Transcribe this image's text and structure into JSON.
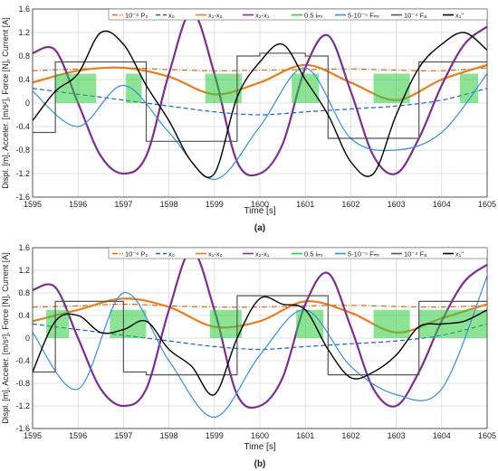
{
  "chart_data": [
    {
      "panel_label": "(a)",
      "type": "line",
      "xlabel": "Time [s]",
      "ylabel": "Displ. [m], Acceler. [m/s²], Force [N], Current [A]",
      "xlim": [
        1595,
        1605
      ],
      "ylim": [
        -1.6,
        1.6
      ],
      "x_ticks": [
        1595,
        1596,
        1597,
        1598,
        1599,
        1600,
        1601,
        1602,
        1603,
        1604,
        1605
      ],
      "y_ticks": [
        -1.6,
        -1.2,
        -0.8,
        -0.4,
        0,
        0.4,
        0.8,
        1.2,
        1.6
      ],
      "grid": true,
      "legend_position": "top",
      "legend": [
        {
          "label": "10⁻⁶ P₀",
          "color": "#d2691e",
          "dash": "6,2,1,2"
        },
        {
          "label": "x₀",
          "color": "#1f5fbf",
          "dash": "5,3"
        },
        {
          "label": "x₁-x₀",
          "color": "#e67e22",
          "dash": ""
        },
        {
          "label": "x₂-x₁",
          "color": "#7b2f8e",
          "dash": ""
        },
        {
          "label": "0.5 iₘᵣ",
          "color": "#2ecc40",
          "dash": ""
        },
        {
          "label": "5·10⁻⁵ Fₘᵣ",
          "color": "#3a8fd8",
          "dash": ""
        },
        {
          "label": "10⁻⁴ Fₐ",
          "color": "#555555",
          "dash": ""
        },
        {
          "label": "x₁''",
          "color": "#000000",
          "dash": ""
        }
      ],
      "series": [
        {
          "key": "p0",
          "x": [
            1595,
            1596,
            1597,
            1598,
            1599,
            1600,
            1601,
            1602,
            1603,
            1604,
            1605
          ],
          "y": [
            0.55,
            0.58,
            0.6,
            0.57,
            0.55,
            0.56,
            0.57,
            0.58,
            0.56,
            0.55,
            0.6
          ]
        },
        {
          "key": "x0",
          "x": [
            1595,
            1596,
            1597,
            1598,
            1599,
            1600,
            1601,
            1602,
            1603,
            1604,
            1605
          ],
          "y": [
            0.25,
            0.15,
            0.05,
            -0.05,
            -0.15,
            -0.2,
            -0.15,
            -0.1,
            -0.05,
            0.05,
            0.25
          ]
        },
        {
          "key": "x1x0",
          "x": [
            1595,
            1596,
            1597,
            1598,
            1599,
            1600,
            1601,
            1602,
            1603,
            1604,
            1605
          ],
          "y": [
            0.35,
            0.55,
            0.6,
            0.45,
            0.15,
            0.35,
            0.65,
            0.35,
            0.05,
            0.4,
            0.65
          ]
        },
        {
          "key": "x2x1",
          "x": [
            1595,
            1595.5,
            1596,
            1596.5,
            1597,
            1597.5,
            1598,
            1598.5,
            1599,
            1599.5,
            1600,
            1600.5,
            1601,
            1601.5,
            1602,
            1602.5,
            1603,
            1603.5,
            1604,
            1604.5,
            1605
          ],
          "y": [
            0.85,
            0.9,
            0.0,
            -0.9,
            -1.2,
            -0.9,
            0.5,
            1.55,
            0.5,
            -1.0,
            -1.2,
            -0.7,
            0.6,
            1.15,
            0.2,
            -0.9,
            -1.2,
            -0.6,
            0.3,
            1.0,
            1.3
          ]
        },
        {
          "key": "imr",
          "bands": [
            [
              1595.5,
              1596.4
            ],
            [
              1597.05,
              1597.4
            ],
            [
              1598.8,
              1599.6
            ],
            [
              1600.7,
              1601.3
            ],
            [
              1602.5,
              1603.3
            ],
            [
              1604.4,
              1604.8
            ]
          ],
          "y": [
            0,
            0.5
          ]
        },
        {
          "key": "fmr",
          "x": [
            1595,
            1596,
            1597,
            1598,
            1599,
            1600,
            1601,
            1602,
            1603,
            1604,
            1605
          ],
          "y": [
            0.2,
            -0.4,
            0.3,
            -0.5,
            -1.3,
            -0.4,
            0.6,
            -0.6,
            -0.8,
            -0.5,
            0.5
          ]
        },
        {
          "key": "fa",
          "x": [
            1595,
            1595.5,
            1596,
            1596.5,
            1597,
            1597.5,
            1598,
            1598.5,
            1599,
            1599.5,
            1600,
            1600.5,
            1601,
            1601.5,
            1602,
            1602.5,
            1603,
            1603.5,
            1604,
            1604.5,
            1605
          ],
          "y": [
            -0.5,
            0.7,
            0.7,
            0.7,
            0.7,
            -0.65,
            -0.65,
            -0.65,
            -0.65,
            0.8,
            0.85,
            0.85,
            0.8,
            -0.6,
            -0.6,
            -0.6,
            -0.6,
            0.7,
            0.7,
            0.7,
            0.7
          ]
        },
        {
          "key": "acc",
          "x": [
            1595,
            1595.5,
            1596,
            1596.5,
            1597,
            1597.5,
            1598,
            1598.5,
            1599,
            1599.5,
            1600,
            1600.5,
            1601,
            1601.5,
            1602,
            1602.5,
            1603,
            1603.5,
            1604,
            1604.5,
            1605
          ],
          "y": [
            -0.3,
            0.2,
            0.5,
            1.2,
            1.0,
            0.3,
            -0.3,
            -1.0,
            -1.2,
            0.1,
            0.7,
            1.0,
            0.4,
            -0.2,
            -1.0,
            -1.2,
            -0.2,
            0.6,
            1.0,
            1.2,
            0.9
          ]
        }
      ]
    },
    {
      "panel_label": "(b)",
      "type": "line",
      "xlabel": "Time [s]",
      "ylabel": "Displ. [m], Acceler. [m/s²], Force [N], Current [A]",
      "xlim": [
        1595,
        1605
      ],
      "ylim": [
        -1.6,
        1.6
      ],
      "x_ticks": [
        1595,
        1596,
        1597,
        1598,
        1599,
        1600,
        1601,
        1602,
        1603,
        1604,
        1605
      ],
      "y_ticks": [
        -1.6,
        -1.2,
        -0.8,
        -0.4,
        0,
        0.4,
        0.8,
        1.2,
        1.6
      ],
      "grid": true,
      "legend_position": "top",
      "legend": [
        {
          "label": "10⁻⁶ P₀",
          "color": "#d2691e",
          "dash": "6,2,1,2"
        },
        {
          "label": "x₀",
          "color": "#1f5fbf",
          "dash": "5,3"
        },
        {
          "label": "x₁-x₀",
          "color": "#e67e22",
          "dash": ""
        },
        {
          "label": "x₂-x₁",
          "color": "#7b2f8e",
          "dash": ""
        },
        {
          "label": "0.5 iₘᵣ",
          "color": "#2ecc40",
          "dash": ""
        },
        {
          "label": "5·10⁻⁵ Fₘᵣ",
          "color": "#3a8fd8",
          "dash": ""
        },
        {
          "label": "10⁻⁴ Fₐ",
          "color": "#555555",
          "dash": ""
        },
        {
          "label": "x₁''",
          "color": "#000000",
          "dash": ""
        }
      ],
      "series": [
        {
          "key": "p0",
          "x": [
            1595,
            1596,
            1597,
            1598,
            1599,
            1600,
            1601,
            1602,
            1603,
            1604,
            1605
          ],
          "y": [
            0.55,
            0.57,
            0.6,
            0.57,
            0.55,
            0.55,
            0.57,
            0.58,
            0.56,
            0.55,
            0.58
          ]
        },
        {
          "key": "x0",
          "x": [
            1595,
            1596,
            1597,
            1598,
            1599,
            1600,
            1601,
            1602,
            1603,
            1604,
            1605
          ],
          "y": [
            0.25,
            0.15,
            0.05,
            -0.05,
            -0.15,
            -0.2,
            -0.15,
            -0.1,
            -0.05,
            0.05,
            0.25
          ]
        },
        {
          "key": "x1x0",
          "x": [
            1595,
            1596,
            1597,
            1598,
            1599,
            1600,
            1601,
            1602,
            1603,
            1604,
            1605
          ],
          "y": [
            0.3,
            0.5,
            0.7,
            0.55,
            0.2,
            0.3,
            0.65,
            0.45,
            0.1,
            0.35,
            0.6
          ]
        },
        {
          "key": "x2x1",
          "x": [
            1595,
            1595.5,
            1596,
            1596.5,
            1597,
            1597.5,
            1598,
            1598.5,
            1599,
            1599.5,
            1600,
            1600.5,
            1601,
            1601.5,
            1602,
            1602.5,
            1603,
            1603.5,
            1604,
            1604.5,
            1605
          ],
          "y": [
            0.85,
            0.9,
            0.0,
            -0.9,
            -1.2,
            -0.9,
            0.5,
            1.55,
            0.5,
            -1.0,
            -1.2,
            -0.7,
            0.6,
            1.15,
            0.2,
            -0.9,
            -1.2,
            -0.6,
            0.3,
            1.0,
            1.3
          ]
        },
        {
          "key": "imr",
          "bands": [
            [
              1595.3,
              1595.8
            ],
            [
              1596.7,
              1597.5
            ],
            [
              1598.9,
              1599.6
            ],
            [
              1600.8,
              1601.4
            ],
            [
              1602.5,
              1603.3
            ],
            [
              1603.5,
              1605
            ]
          ],
          "y": [
            0,
            0.5
          ]
        },
        {
          "key": "fmr",
          "x": [
            1595,
            1596,
            1597,
            1598,
            1599,
            1600,
            1601,
            1602,
            1603,
            1604,
            1605
          ],
          "y": [
            0.1,
            -0.9,
            0.8,
            -0.4,
            -1.4,
            -0.3,
            0.5,
            -0.5,
            -1.0,
            -0.9,
            1.1
          ]
        },
        {
          "key": "fa",
          "x": [
            1595,
            1595.5,
            1596,
            1596.5,
            1597,
            1597.5,
            1598,
            1598.5,
            1599,
            1599.5,
            1600,
            1600.5,
            1601,
            1601.5,
            1602,
            1602.5,
            1603,
            1603.5,
            1604,
            1604.5,
            1605
          ],
          "y": [
            -0.6,
            0.65,
            0.65,
            0.65,
            -0.6,
            -0.65,
            -0.65,
            -0.65,
            -0.65,
            0.75,
            0.75,
            0.75,
            0.75,
            -0.65,
            -0.65,
            -0.65,
            -0.65,
            0.65,
            0.65,
            0.65,
            0.65
          ]
        },
        {
          "key": "acc",
          "x": [
            1595,
            1595.5,
            1596,
            1596.5,
            1597,
            1597.5,
            1598,
            1598.5,
            1599,
            1599.5,
            1600,
            1600.5,
            1601,
            1601.5,
            1602,
            1602.5,
            1603,
            1603.5,
            1604,
            1604.5,
            1605
          ],
          "y": [
            -0.6,
            0.3,
            0.4,
            0.1,
            0.15,
            0.3,
            -0.2,
            -0.5,
            -1.0,
            0.0,
            0.7,
            0.6,
            0.5,
            -0.2,
            -0.7,
            -0.6,
            -0.3,
            0.2,
            0.25,
            0.3,
            0.5
          ]
        }
      ]
    }
  ]
}
